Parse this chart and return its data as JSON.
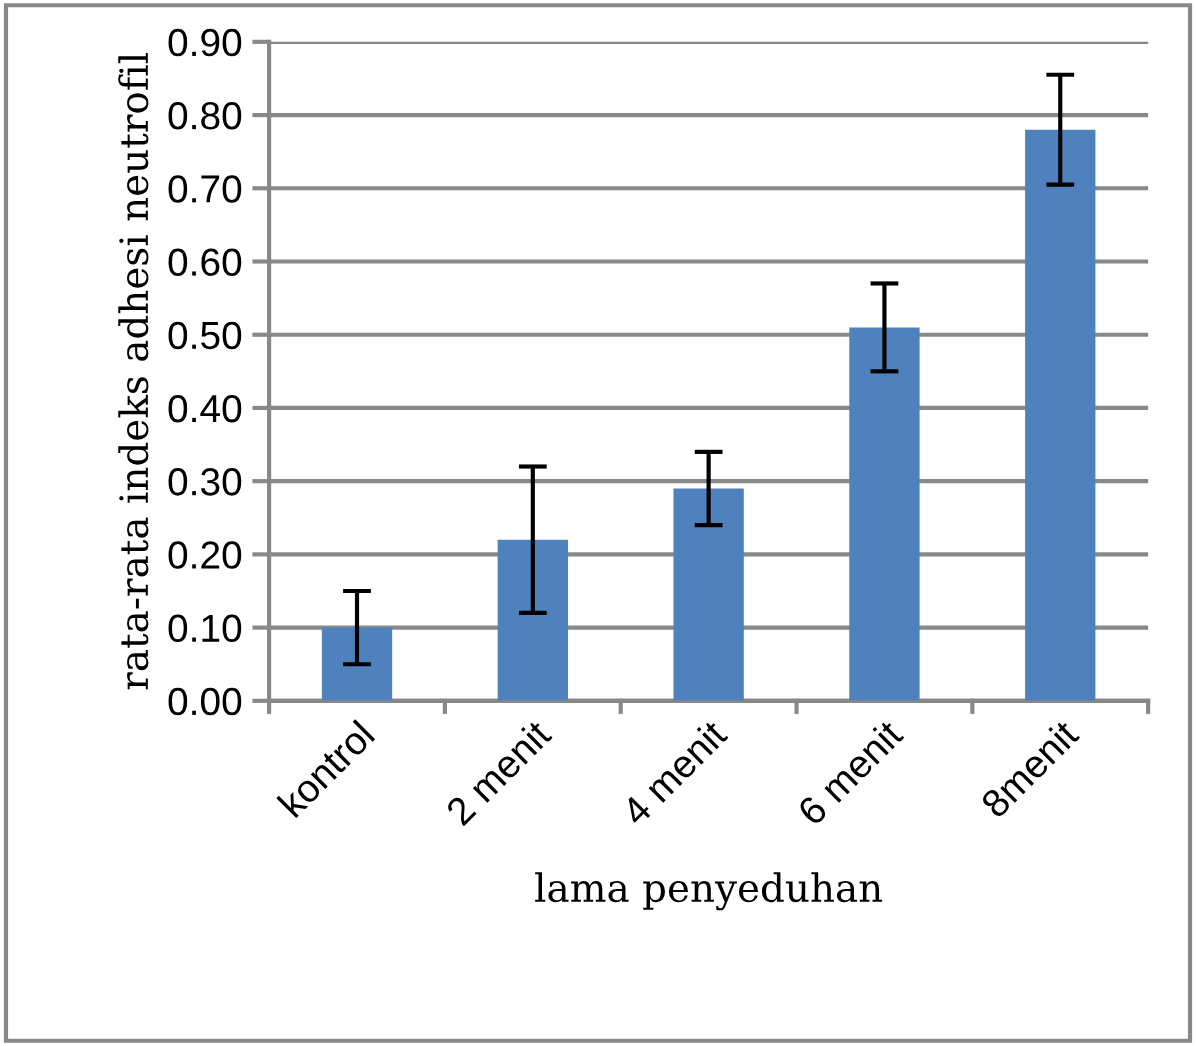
{
  "chart_data": {
    "type": "bar",
    "xlabel": "lama penyeduhan",
    "ylabel": "rata-rata indeks adhesi neutrofil",
    "categories": [
      "kontrol",
      "2 menit",
      "4 menit",
      "6 menit",
      "8menit"
    ],
    "values": [
      0.1,
      0.22,
      0.29,
      0.51,
      0.78
    ],
    "errors": [
      0.05,
      0.1,
      0.05,
      0.06,
      0.075
    ],
    "color": "#4f81bd",
    "ylim": [
      0,
      0.9
    ],
    "yticks": [
      {
        "value": 0,
        "label": "0.00"
      },
      {
        "value": 0.1,
        "label": "0.10"
      },
      {
        "value": 0.2,
        "label": "0.20"
      },
      {
        "value": 0.3,
        "label": "0.30"
      },
      {
        "value": 0.4,
        "label": "0.40"
      },
      {
        "value": 0.5,
        "label": "0.50"
      },
      {
        "value": 0.6,
        "label": "0.60"
      },
      {
        "value": 0.7,
        "label": "0.70"
      },
      {
        "value": 0.8,
        "label": "0.80"
      },
      {
        "value": 0.9,
        "label": "0.90"
      }
    ],
    "grid": "y"
  }
}
